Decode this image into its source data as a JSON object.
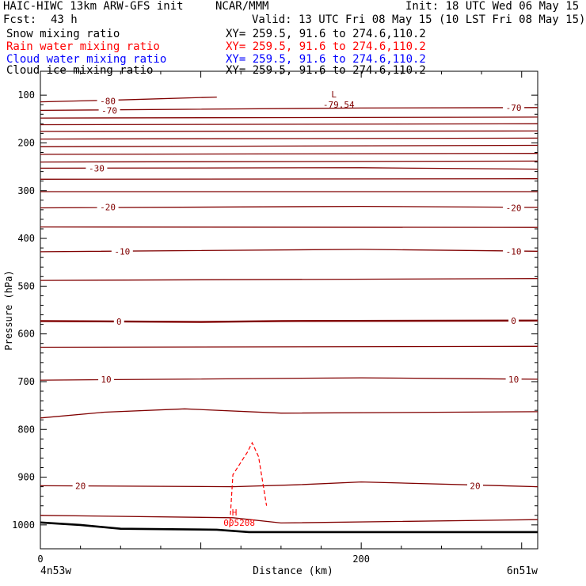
{
  "header": {
    "model": "HAIC-HIWC 13km ARW-GFS init",
    "center": "NCAR/MMM",
    "init": "Init: 18 UTC Wed 06 May 15",
    "fcst_label": "Fcst:",
    "fcst_value": "43 h",
    "valid": "Valid: 13 UTC Fri 08 May 15 (10 LST Fri 08 May 15)"
  },
  "fields": [
    {
      "name": "Snow mixing ratio",
      "xy": "XY= 259.5, 91.6 to 274.6,110.2",
      "color": "#000000"
    },
    {
      "name": "Rain water mixing ratio",
      "xy": "XY= 259.5, 91.6 to 274.6,110.2",
      "color": "#ff0000"
    },
    {
      "name": "Cloud water mixing ratio",
      "xy": "XY= 259.5, 91.6 to 274.6,110.2",
      "color": "#0000ff"
    },
    {
      "name": "Cloud ice mixing ratio",
      "xy": "XY= 259.5, 91.6 to 274.6,110.2",
      "color": "#000000"
    }
  ],
  "colors": {
    "contour": "#800000",
    "rain": "#ff0000",
    "terrain": "#000000"
  },
  "chart_data": {
    "type": "line",
    "title": "",
    "xlabel": "Distance (km)",
    "ylabel": "Pressure (hPa)",
    "xlim": [
      0,
      310
    ],
    "ylim": [
      1050,
      50
    ],
    "x_ticks": [
      "0",
      "200"
    ],
    "y_ticks": [
      "100",
      "200",
      "300",
      "400",
      "500",
      "600",
      "700",
      "800",
      "900",
      "1000"
    ],
    "x_endpoints": {
      "left": "4n53w",
      "right": "6n51w"
    },
    "isotherms": [
      {
        "label": "-80",
        "points": [
          [
            0,
            114
          ],
          [
            50,
            110
          ],
          [
            110,
            104
          ]
        ]
      },
      {
        "label": "-70",
        "points": [
          [
            0,
            132
          ],
          [
            200,
            127
          ],
          [
            310,
            126
          ]
        ]
      },
      {
        "label": "",
        "points": [
          [
            0,
            148
          ],
          [
            310,
            146
          ]
        ]
      },
      {
        "label": "",
        "points": [
          [
            0,
            162
          ],
          [
            310,
            160
          ]
        ]
      },
      {
        "label": "",
        "points": [
          [
            0,
            176
          ],
          [
            310,
            175
          ]
        ]
      },
      {
        "label": "",
        "points": [
          [
            0,
            192
          ],
          [
            310,
            190
          ]
        ]
      },
      {
        "label": "",
        "points": [
          [
            0,
            208
          ],
          [
            310,
            205
          ]
        ]
      },
      {
        "label": "",
        "points": [
          [
            0,
            224
          ],
          [
            310,
            222
          ]
        ]
      },
      {
        "label": "",
        "points": [
          [
            0,
            240
          ],
          [
            310,
            238
          ]
        ]
      },
      {
        "label": "-30",
        "points": [
          [
            0,
            253
          ],
          [
            200,
            252
          ],
          [
            310,
            255
          ]
        ]
      },
      {
        "label": "",
        "points": [
          [
            0,
            276
          ],
          [
            310,
            275
          ]
        ]
      },
      {
        "label": "",
        "points": [
          [
            0,
            302
          ],
          [
            310,
            302
          ]
        ]
      },
      {
        "label": "-20",
        "points": [
          [
            0,
            336
          ],
          [
            200,
            333
          ],
          [
            310,
            335
          ]
        ]
      },
      {
        "label": "",
        "points": [
          [
            0,
            376
          ],
          [
            310,
            377
          ]
        ]
      },
      {
        "label": "-10",
        "points": [
          [
            0,
            428
          ],
          [
            200,
            423
          ],
          [
            310,
            427
          ]
        ]
      },
      {
        "label": "",
        "points": [
          [
            0,
            488
          ],
          [
            310,
            484
          ]
        ]
      },
      {
        "label": "0",
        "points": [
          [
            0,
            573
          ],
          [
            100,
            575
          ],
          [
            150,
            573
          ],
          [
            310,
            572
          ]
        ]
      },
      {
        "label": "",
        "points": [
          [
            0,
            628
          ],
          [
            310,
            626
          ]
        ]
      },
      {
        "label": "10",
        "points": [
          [
            0,
            697
          ],
          [
            200,
            692
          ],
          [
            310,
            695
          ]
        ]
      },
      {
        "label": "",
        "points": [
          [
            0,
            776
          ],
          [
            40,
            764
          ],
          [
            90,
            757
          ],
          [
            150,
            766
          ],
          [
            310,
            763
          ]
        ]
      },
      {
        "label": "20",
        "points": [
          [
            0,
            918
          ],
          [
            120,
            920
          ],
          [
            160,
            916
          ],
          [
            200,
            910
          ],
          [
            310,
            920
          ]
        ]
      },
      {
        "label": "",
        "points": [
          [
            0,
            980
          ],
          [
            120,
            985
          ],
          [
            150,
            996
          ],
          [
            310,
            989
          ]
        ]
      }
    ],
    "isotherm_labels": [
      {
        "text": "-80",
        "x": 42,
        "p": 112
      },
      {
        "text": "-70",
        "x": 43,
        "p": 132
      },
      {
        "text": "-70",
        "x": 295,
        "p": 126
      },
      {
        "text": "-30",
        "x": 35,
        "p": 253
      },
      {
        "text": "-20",
        "x": 42,
        "p": 334
      },
      {
        "text": "-20",
        "x": 295,
        "p": 336
      },
      {
        "text": "-10",
        "x": 51,
        "p": 427
      },
      {
        "text": "-10",
        "x": 295,
        "p": 427
      },
      {
        "text": "0",
        "x": 49,
        "p": 574
      },
      {
        "text": "0",
        "x": 295,
        "p": 572
      },
      {
        "text": "10",
        "x": 41,
        "p": 695
      },
      {
        "text": "10",
        "x": 295,
        "p": 695
      },
      {
        "text": "20",
        "x": 25,
        "p": 918
      },
      {
        "text": "20",
        "x": 271,
        "p": 918
      }
    ],
    "rain_contour": {
      "points": [
        [
          118,
          1005
        ],
        [
          120,
          895
        ],
        [
          129,
          848
        ],
        [
          132,
          828
        ],
        [
          136,
          857
        ],
        [
          141,
          960
        ]
      ]
    },
    "terrain": {
      "points": [
        [
          0,
          995
        ],
        [
          25,
          1000
        ],
        [
          50,
          1008
        ],
        [
          110,
          1010
        ],
        [
          130,
          1015
        ],
        [
          310,
          1015
        ]
      ]
    },
    "extrema": [
      {
        "letter": "L",
        "value": "-79.54",
        "x": 183,
        "p": 110,
        "color": "contour"
      },
      {
        "letter": "H",
        "value": "005208",
        "x": 121,
        "p": 985,
        "color": "rain"
      }
    ]
  }
}
